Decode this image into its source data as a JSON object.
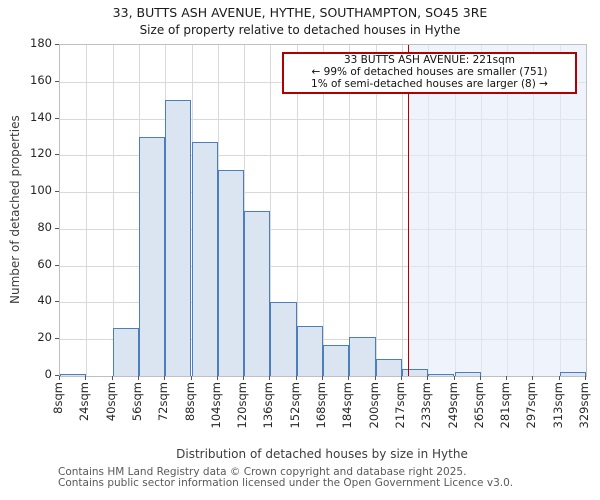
{
  "title": {
    "line1": "33, BUTTS ASH AVENUE, HYTHE, SOUTHAMPTON, SO45 3RE",
    "line2": "Size of property relative to detached houses in Hythe"
  },
  "chart_data": {
    "type": "bar",
    "title": "33, BUTTS ASH AVENUE, HYTHE, SOUTHAMPTON, SO45 3RE",
    "subtitle": "Size of property relative to detached houses in Hythe",
    "categories": [
      "8sqm",
      "24sqm",
      "40sqm",
      "56sqm",
      "72sqm",
      "88sqm",
      "104sqm",
      "120sqm",
      "136sqm",
      "152sqm",
      "168sqm",
      "184sqm",
      "200sqm",
      "217sqm",
      "233sqm",
      "249sqm",
      "265sqm",
      "281sqm",
      "297sqm",
      "313sqm",
      "329sqm"
    ],
    "values": [
      1,
      0,
      26,
      130,
      150,
      127,
      112,
      90,
      40,
      27,
      17,
      21,
      9,
      4,
      1,
      2,
      0,
      0,
      0,
      2
    ],
    "xlabel": "Distribution of detached houses by size in Hythe",
    "ylabel": "Number of detached properties",
    "ylim": [
      0,
      180
    ],
    "ytick_step": 20,
    "grid": true,
    "legend": "none",
    "marker": {
      "value_sqm": 221,
      "shaded_region": "right-of-marker"
    },
    "annotation": {
      "line1": "33 BUTTS ASH AVENUE: 221sqm",
      "line2": "← 99% of detached houses are smaller (751)",
      "line3": "1% of semi-detached houses are larger (8) →"
    }
  },
  "footer": {
    "line1": "Contains HM Land Registry data © Crown copyright and database right 2025.",
    "line2": "Contains public sector information licensed under the Open Government Licence v3.0."
  },
  "colors": {
    "bar_fill": "#dbe5f2",
    "bar_border": "#4a7ebc",
    "marker_red": "#b00000",
    "shade_fill": "rgba(226,235,250,0.6)",
    "gridline": "#d9d9d9"
  }
}
